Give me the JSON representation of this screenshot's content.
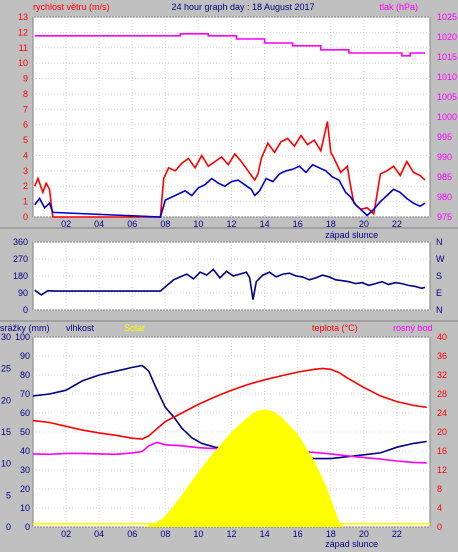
{
  "chart_data": [
    {
      "type": "line",
      "title": "24 hour graph day : 18 August 2017",
      "left_label": "rychlost větru (m/s)",
      "right_label": "tlak (hPa)",
      "x_ticks": [
        "02",
        "04",
        "06",
        "08",
        "10",
        "12",
        "14",
        "16",
        "18",
        "20",
        "22"
      ],
      "xlim": [
        0,
        24
      ],
      "left_ticks": [
        "0",
        "1",
        "2",
        "3",
        "4",
        "5",
        "6",
        "7",
        "8",
        "9",
        "10",
        "11",
        "12",
        "13"
      ],
      "ylim_left": [
        0,
        13
      ],
      "right_ticks": [
        "975",
        "980",
        "985",
        "990",
        "995",
        "1000",
        "1005",
        "1010",
        "1015",
        "1020",
        "1025"
      ],
      "ylim_right": [
        975,
        1025
      ],
      "annotation": "západ slunce",
      "annotation_x": 18.9,
      "colors": {
        "gust": "#ff0000",
        "wind": "#0000cc",
        "pressure": "#ff00ff",
        "left_axis": "#ff0000",
        "right_axis": "#ff00ff"
      },
      "series": [
        {
          "axis": "left",
          "color": "#ff0000",
          "x": [
            0.1,
            0.3,
            0.6,
            0.8,
            1.0,
            1.2,
            7.7,
            7.9,
            8.2,
            8.6,
            9.0,
            9.4,
            9.8,
            10.2,
            10.6,
            11.0,
            11.4,
            11.8,
            12.2,
            12.6,
            13.0,
            13.4,
            13.6,
            13.8,
            14.2,
            14.6,
            15.0,
            15.4,
            15.8,
            16.2,
            16.6,
            17.0,
            17.4,
            17.8,
            18.0,
            18.2,
            18.6,
            19.0,
            19.2,
            19.4,
            19.8,
            20.2,
            20.6,
            21.0,
            21.4,
            21.8,
            22.2,
            22.6,
            23.0,
            23.4,
            23.7
          ],
          "y": [
            2.0,
            2.5,
            1.6,
            2.2,
            1.8,
            0.0,
            0.0,
            2.5,
            3.2,
            3.0,
            3.5,
            3.8,
            3.2,
            4.0,
            3.3,
            3.6,
            3.9,
            3.4,
            4.1,
            3.6,
            3.0,
            2.4,
            2.8,
            3.8,
            4.8,
            4.2,
            4.9,
            5.1,
            4.6,
            5.3,
            4.7,
            5.0,
            4.3,
            6.2,
            4.2,
            3.8,
            2.9,
            3.3,
            2.0,
            0.9,
            0.5,
            0.6,
            0.2,
            2.8,
            3.0,
            3.3,
            2.7,
            3.6,
            2.9,
            2.7,
            2.4
          ]
        },
        {
          "axis": "left",
          "color": "#0000cc",
          "x": [
            0.1,
            0.4,
            0.7,
            1.0,
            1.2,
            7.7,
            8.0,
            8.4,
            8.8,
            9.2,
            9.6,
            10.0,
            10.4,
            10.8,
            11.2,
            11.6,
            12.0,
            12.4,
            12.8,
            13.2,
            13.4,
            13.7,
            14.1,
            14.5,
            14.9,
            15.3,
            15.7,
            16.1,
            16.5,
            16.9,
            17.3,
            17.7,
            18.1,
            18.5,
            18.9,
            19.2,
            19.5,
            19.9,
            20.2,
            20.6,
            21.0,
            21.4,
            21.8,
            22.2,
            22.6,
            23.0,
            23.4,
            23.7
          ],
          "y": [
            0.8,
            1.2,
            0.6,
            0.9,
            0.3,
            0.0,
            1.1,
            1.3,
            1.5,
            1.7,
            1.4,
            1.9,
            2.1,
            2.5,
            2.2,
            2.0,
            2.3,
            2.4,
            2.1,
            1.8,
            1.4,
            1.7,
            2.5,
            2.3,
            2.8,
            3.0,
            3.1,
            3.3,
            2.9,
            3.4,
            3.2,
            3.0,
            2.6,
            2.4,
            1.6,
            1.3,
            0.8,
            0.4,
            0.1,
            0.5,
            1.0,
            1.4,
            1.8,
            1.6,
            1.2,
            0.9,
            0.7,
            0.9
          ]
        },
        {
          "axis": "right",
          "color": "#ff00ff",
          "x": [
            0.1,
            7.2,
            7.2,
            8.9,
            8.9,
            10.6,
            10.6,
            12.3,
            12.3,
            14.0,
            14.0,
            15.7,
            15.7,
            17.4,
            17.4,
            19.1,
            19.1,
            22.3,
            22.3,
            22.8,
            22.8,
            23.7
          ],
          "y": [
            1020.3,
            1020.3,
            1020.3,
            1020.3,
            1020.8,
            1020.8,
            1020.3,
            1020.3,
            1019.5,
            1019.5,
            1018.5,
            1018.5,
            1017.8,
            1017.8,
            1016.8,
            1016.8,
            1016.0,
            1016.0,
            1015.3,
            1015.3,
            1016.0,
            1016.0
          ]
        }
      ]
    },
    {
      "type": "line",
      "xlim": [
        0,
        24
      ],
      "left_ticks": [
        "0",
        "90",
        "180",
        "270",
        "360"
      ],
      "ylim_left": [
        0,
        360
      ],
      "right_ticks": [
        "N",
        "E",
        "S",
        "W",
        "N"
      ],
      "series": [
        {
          "color": "#000080",
          "x": [
            0.1,
            0.5,
            0.9,
            1.3,
            7.0,
            7.7,
            8.1,
            8.5,
            8.9,
            9.3,
            9.7,
            10.1,
            10.5,
            10.9,
            11.3,
            11.7,
            12.1,
            12.5,
            12.9,
            13.1,
            13.3,
            13.5,
            13.9,
            14.3,
            14.7,
            15.1,
            15.5,
            15.9,
            16.3,
            16.7,
            17.1,
            17.5,
            17.9,
            18.3,
            18.7,
            19.1,
            19.5,
            19.9,
            20.3,
            20.7,
            21.1,
            21.5,
            21.9,
            22.3,
            22.7,
            23.1,
            23.5,
            23.7
          ],
          "y": [
            105,
            80,
            102,
            100,
            100,
            100,
            130,
            160,
            175,
            190,
            165,
            200,
            185,
            215,
            170,
            205,
            180,
            190,
            200,
            170,
            55,
            150,
            185,
            200,
            175,
            190,
            195,
            180,
            175,
            160,
            170,
            185,
            175,
            160,
            155,
            150,
            140,
            145,
            130,
            140,
            150,
            135,
            145,
            140,
            130,
            125,
            115,
            120
          ]
        }
      ]
    },
    {
      "type": "line",
      "left_label_1": "srážky (mm)",
      "left_label_2": "vlhkost",
      "left_label_3": "Solar",
      "right_label_1": "teplota (°C)",
      "right_label_2": "rosný bod",
      "annotation": "západ slunce",
      "annotation_x": 18.9,
      "xlim": [
        0,
        24
      ],
      "left_ticks_1": [
        "0",
        "5",
        "10",
        "15",
        "20",
        "25",
        "30"
      ],
      "left_ticks_2": [
        "0",
        "10",
        "20",
        "30",
        "40",
        "50",
        "60",
        "70",
        "80",
        "90",
        "100"
      ],
      "ylim_left": [
        0,
        100
      ],
      "right_ticks": [
        "0",
        "4",
        "8",
        "12",
        "16",
        "20",
        "24",
        "28",
        "32",
        "36",
        "40"
      ],
      "ylim_right": [
        0,
        40
      ],
      "colors": {
        "humidity": "#000080",
        "temperature": "#ff0000",
        "dewpoint": "#ff00ff",
        "solar": "#ffff00",
        "rain": "#ffff00"
      },
      "series": [
        {
          "name": "vlhkost",
          "color": "#000080",
          "x": [
            0,
            1,
            2,
            3,
            4,
            5,
            6,
            6.6,
            7.0,
            7.4,
            8.0,
            8.5,
            9.0,
            9.6,
            10.2,
            11,
            12,
            13,
            14,
            15,
            16,
            17,
            18,
            19,
            20,
            21,
            22,
            23,
            23.8
          ],
          "y": [
            69,
            70,
            72,
            77,
            80,
            82,
            84,
            85,
            82,
            74,
            63,
            58,
            52,
            47,
            44,
            42,
            41,
            40,
            39,
            38,
            37,
            36,
            36,
            37,
            38,
            39,
            42,
            44,
            45
          ]
        },
        {
          "name": "teplota (°C)",
          "color": "#ff0000",
          "x": [
            0,
            1,
            2,
            3,
            4,
            5,
            6,
            6.6,
            7.0,
            7.4,
            8.0,
            9,
            10,
            11,
            12,
            13,
            14,
            15,
            16,
            17,
            17.5,
            18,
            18.5,
            19,
            20,
            21,
            22,
            23,
            23.8
          ],
          "y": [
            22.4,
            22.0,
            21.2,
            20.4,
            19.8,
            19.3,
            18.7,
            18.5,
            19.2,
            20.4,
            22.2,
            24.0,
            25.8,
            27.4,
            28.8,
            30.0,
            31.0,
            31.8,
            32.6,
            33.2,
            33.4,
            33.2,
            32.5,
            31.4,
            29.4,
            27.6,
            26.4,
            25.6,
            25.2
          ]
        },
        {
          "name": "rosný bod",
          "color": "#ff00ff",
          "x": [
            0,
            1,
            2,
            3,
            4,
            5,
            6,
            6.6,
            7.0,
            7.5,
            8,
            9,
            10,
            11,
            12,
            13,
            14,
            15,
            16,
            17,
            18,
            19,
            20,
            21,
            22,
            23,
            23.8
          ],
          "y": [
            15.4,
            15.3,
            15.5,
            15.5,
            15.4,
            15.3,
            15.6,
            15.9,
            17.1,
            17.8,
            17.3,
            17.1,
            16.7,
            16.5,
            16.4,
            16.5,
            16.3,
            16.1,
            16.0,
            15.7,
            15.4,
            15.0,
            14.6,
            14.3,
            13.9,
            13.6,
            13.5
          ]
        },
        {
          "name": "Solar",
          "color": "#ffff00",
          "type": "area",
          "x": [
            0,
            6.7,
            7.0,
            7.4,
            7.9,
            8.4,
            9,
            10,
            11,
            12,
            13,
            13.5,
            14,
            14.5,
            15,
            16,
            17,
            17.8,
            18.2,
            18.5,
            18.8,
            24
          ],
          "y": [
            0,
            0,
            1,
            2,
            5,
            10,
            17,
            29,
            40,
            50,
            58,
            61,
            62,
            61,
            58,
            49,
            35,
            20,
            10,
            3,
            0,
            0
          ]
        },
        {
          "name": "srážky (mm)",
          "color": "#ffff00",
          "x": [
            0,
            24
          ],
          "y": [
            0.5,
            0.5
          ]
        }
      ]
    }
  ]
}
